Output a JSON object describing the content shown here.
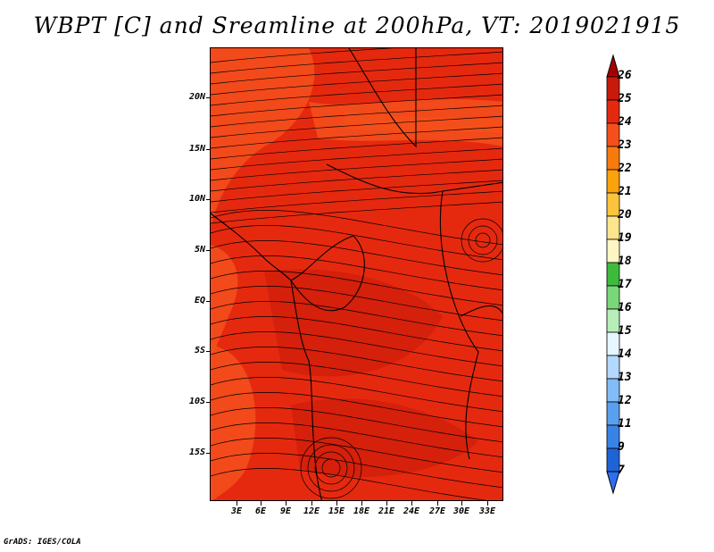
{
  "title": "WBPT [C] and Sreamline at 200hPa, VT: 2019021915",
  "footer": "GrADS: IGES/COLA",
  "map": {
    "lat_labels": [
      "20N",
      "15N",
      "10N",
      "5N",
      "EQ",
      "5S",
      "10S",
      "15S"
    ],
    "lon_labels": [
      "3E",
      "6E",
      "9E",
      "12E",
      "15E",
      "18E",
      "21E",
      "24E",
      "27E",
      "30E",
      "33E"
    ],
    "field_colors": {
      "base": "#e5290f",
      "warm": "#f5501c",
      "dark": "#c81a0a"
    }
  },
  "colorbar": {
    "labels": [
      "26",
      "25",
      "24",
      "23",
      "22",
      "21",
      "20",
      "19",
      "18",
      "17",
      "16",
      "15",
      "14",
      "13",
      "12",
      "11",
      "9",
      "7"
    ],
    "colors": [
      "#a50000",
      "#c81a0a",
      "#e5290f",
      "#f5501c",
      "#f77b0c",
      "#fba20c",
      "#fcc43a",
      "#fde58e",
      "#fff6c4",
      "#3dbb3d",
      "#7ad87a",
      "#b7eeb7",
      "#e6f6ff",
      "#b3d9ff",
      "#82bcf8",
      "#5aa0ef",
      "#3a83e6",
      "#1f64d6",
      "#2d6ff0"
    ]
  }
}
